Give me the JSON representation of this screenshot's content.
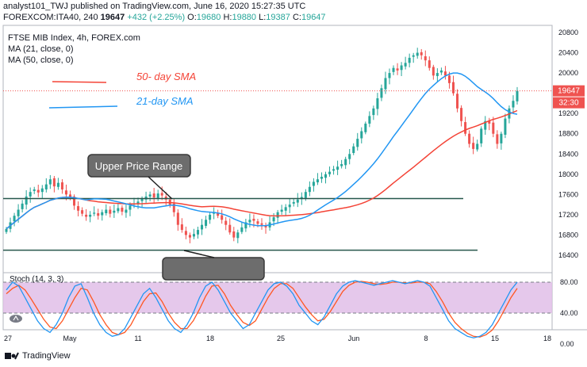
{
  "header": {
    "line1": "analyst101_TWJ published on TradingView.com, June 16, 2020 15:27:35 UTC",
    "symbol": "FOREXCOM:ITA40, 240",
    "last": "19647",
    "change": "+432 (+2.25%)",
    "o_label": "O:",
    "o": "19680",
    "h_label": "H:",
    "h": "19880",
    "l_label": "L:",
    "l": "19387",
    "c_label": "C:",
    "c": "19647"
  },
  "legend": {
    "title": "FTSE MIB Index, 4h, FOREX.com",
    "ma21": "MA (21, close, 0)",
    "ma50": "MA (50, close, 0)"
  },
  "annotations": {
    "sma50": "50- day SMA",
    "sma21": "21-day SMA",
    "upper_range": "Upper Price Range"
  },
  "price_badges": {
    "last": "19647",
    "timer": "32:30"
  },
  "stoch_label": "Stoch (14, 3, 3)",
  "brand": "TradingView",
  "colors": {
    "up": "#26a69a",
    "down": "#ef5350",
    "ma21": "#2196f3",
    "ma50": "#f44336",
    "stoch_bg": "#e1bee7",
    "stoch_k": "#2196f3",
    "stoch_d": "#ff5722"
  },
  "chart_data": {
    "type": "candlestick",
    "price_axis": {
      "ticks": [
        20800,
        20400,
        20000,
        19600,
        19200,
        18800,
        18400,
        18000,
        17600,
        17200,
        16800,
        16400
      ]
    },
    "stoch_axis": {
      "ticks": [
        "80.00",
        "40.00",
        "0.00"
      ]
    },
    "x_ticks": [
      "27",
      "May",
      "11",
      "18",
      "25",
      "Jun",
      "8",
      "15",
      "18"
    ],
    "horizontal_levels": [
      17520,
      16500
    ],
    "closes": [
      16920,
      17050,
      17180,
      17300,
      17420,
      17560,
      17650,
      17700,
      17640,
      17720,
      17800,
      17900,
      17760,
      17830,
      17700,
      17600,
      17540,
      17380,
      17280,
      17220,
      17160,
      17200,
      17240,
      17180,
      17250,
      17300,
      17220,
      17280,
      17330,
      17260,
      17300,
      17380,
      17420,
      17460,
      17520,
      17560,
      17600,
      17540,
      17620,
      17580,
      17500,
      17400,
      17250,
      17000,
      16900,
      16800,
      16750,
      16820,
      16900,
      17000,
      17100,
      17200,
      17250,
      17180,
      17100,
      17000,
      16850,
      16750,
      16850,
      16950,
      17050,
      17100,
      17080,
      17020,
      17000,
      16950,
      17050,
      17150,
      17250,
      17300,
      17350,
      17400,
      17450,
      17500,
      17550,
      17650,
      17750,
      17850,
      17900,
      17950,
      18000,
      18050,
      18100,
      18150,
      18200,
      18300,
      18400,
      18550,
      18700,
      18850,
      19000,
      19150,
      19300,
      19500,
      19700,
      19900,
      20000,
      20100,
      20050,
      20150,
      20200,
      20300,
      20350,
      20400,
      20350,
      20250,
      20100,
      19950,
      20000,
      20050,
      19950,
      19800,
      19600,
      19300,
      19050,
      18800,
      18600,
      18500,
      18600,
      18900,
      19050,
      19000,
      18800,
      18600,
      18800,
      19100,
      19300,
      19450,
      19647
    ],
    "stoch_k": [
      70,
      80,
      75,
      60,
      45,
      30,
      20,
      15,
      25,
      40,
      60,
      75,
      78,
      60,
      40,
      25,
      15,
      10,
      12,
      20,
      35,
      50,
      65,
      72,
      60,
      45,
      30,
      20,
      15,
      25,
      40,
      60,
      75,
      80,
      70,
      55,
      40,
      30,
      20,
      25,
      40,
      55,
      70,
      78,
      80,
      75,
      65,
      50,
      40,
      30,
      25,
      35,
      50,
      65,
      75,
      80,
      82,
      80,
      78,
      76,
      78,
      80,
      82,
      80,
      78,
      80,
      82,
      80,
      75,
      60,
      45,
      30,
      20,
      15,
      10,
      8,
      10,
      15,
      25,
      40,
      55,
      70,
      80
    ],
    "stoch_d": [
      65,
      72,
      76,
      70,
      58,
      45,
      32,
      22,
      20,
      30,
      45,
      60,
      72,
      70,
      55,
      38,
      25,
      15,
      12,
      15,
      25,
      40,
      55,
      65,
      66,
      55,
      40,
      28,
      20,
      20,
      30,
      45,
      62,
      75,
      76,
      65,
      50,
      38,
      28,
      24,
      30,
      45,
      60,
      72,
      78,
      78,
      72,
      60,
      48,
      38,
      30,
      32,
      42,
      55,
      68,
      76,
      80,
      81,
      80,
      78,
      77,
      78,
      80,
      80,
      79,
      79,
      80,
      80,
      78,
      68,
      55,
      40,
      28,
      20,
      14,
      10,
      9,
      12,
      18,
      30,
      45,
      60,
      72
    ]
  }
}
